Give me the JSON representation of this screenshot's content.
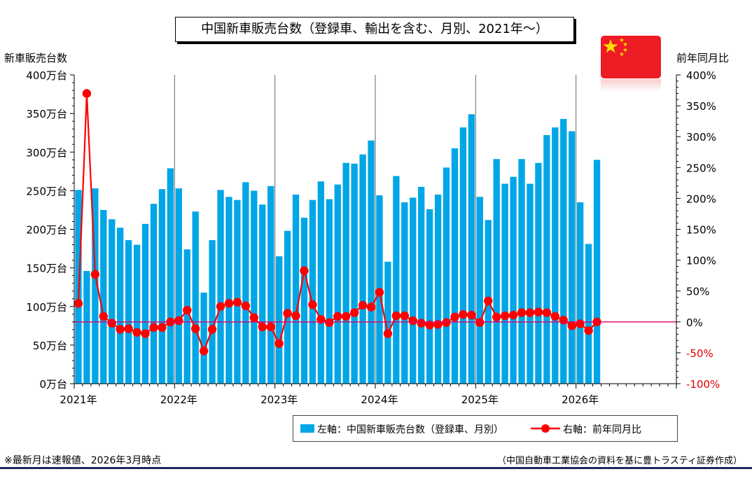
{
  "header": {
    "title": "中国新車販売台数（登録車、輸出を含む、月別、2021年～）",
    "left_axis_title": "新車販売台数",
    "right_axis_title": "前年同月比"
  },
  "legend": {
    "bar_label": "左軸：中国新車販売台数（登録車、月別）",
    "line_label": "右軸：前年同月比"
  },
  "footer": {
    "note": "※最新月は速報値、2026年3月時点",
    "source": "（中国自動車工業協会の資料を基に豊トラスティ証券作成）"
  },
  "colors": {
    "bar": "#00a6e6",
    "line": "#ff0000",
    "zero_line": "#e0006e",
    "flag": "#ee1c25",
    "flag_star": "#ffde00",
    "rule": "#1b2a5e"
  },
  "chart_data": {
    "type": "bar",
    "title": "中国新車販売台数（登録車、輸出を含む、月別、2021年～）",
    "xlabel": "",
    "x_tick_labels": [
      "2021年",
      "2022年",
      "2023年",
      "2024年",
      "2025年",
      "2026年"
    ],
    "y_left": {
      "label": "新車販売台数",
      "range": [
        0,
        400
      ],
      "ticks": [
        0,
        50,
        100,
        150,
        200,
        250,
        300,
        350,
        400
      ],
      "tick_labels": [
        "0万台",
        "50万台",
        "100万台",
        "150万台",
        "200万台",
        "250万台",
        "300万台",
        "350万台",
        "400万台"
      ]
    },
    "y_right": {
      "label": "前年同月比",
      "range": [
        -100,
        400
      ],
      "ticks": [
        -100,
        -50,
        0,
        50,
        100,
        150,
        200,
        250,
        300,
        350,
        400
      ],
      "tick_labels": [
        "-100%",
        "-50%",
        "0%",
        "50%",
        "100%",
        "150%",
        "200%",
        "250%",
        "300%",
        "350%",
        "400%"
      ]
    },
    "months_on_axis": 72,
    "series": [
      {
        "name": "左軸：中国新車販売台数（登録車、月別）",
        "type": "bar",
        "axis": "left",
        "unit": "万台",
        "values": [
          251,
          146,
          253,
          225,
          213,
          202,
          186,
          180,
          207,
          233,
          252,
          279,
          253,
          174,
          223,
          118,
          186,
          251,
          242,
          238,
          261,
          250,
          232,
          256,
          165,
          198,
          245,
          215,
          238,
          262,
          239,
          258,
          286,
          285,
          297,
          315,
          244,
          158,
          269,
          235,
          241,
          255,
          226,
          245,
          280,
          305,
          332,
          349,
          242,
          212,
          291,
          259,
          268,
          291,
          259,
          286,
          322,
          332,
          343,
          327,
          235,
          181,
          290
        ]
      },
      {
        "name": "右軸：前年同月比",
        "type": "line",
        "axis": "right",
        "unit": "%",
        "values": [
          30,
          370,
          77,
          9,
          -2,
          -12,
          -11,
          -17,
          -19,
          -9,
          -9,
          0,
          2,
          19,
          -11,
          -47,
          -12,
          25,
          30,
          32,
          26,
          7,
          -8,
          -8,
          -35,
          14,
          10,
          83,
          28,
          4,
          -1,
          9,
          9,
          15,
          27,
          24,
          48,
          -19,
          10,
          10,
          2,
          -2,
          -5,
          -4,
          -1,
          8,
          12,
          11,
          -1,
          34,
          8,
          10,
          11,
          15,
          15,
          16,
          15,
          9,
          3,
          -6,
          -3,
          -14,
          0
        ]
      }
    ],
    "grid": {
      "vertical_year_lines": true,
      "horizontal": false
    }
  }
}
